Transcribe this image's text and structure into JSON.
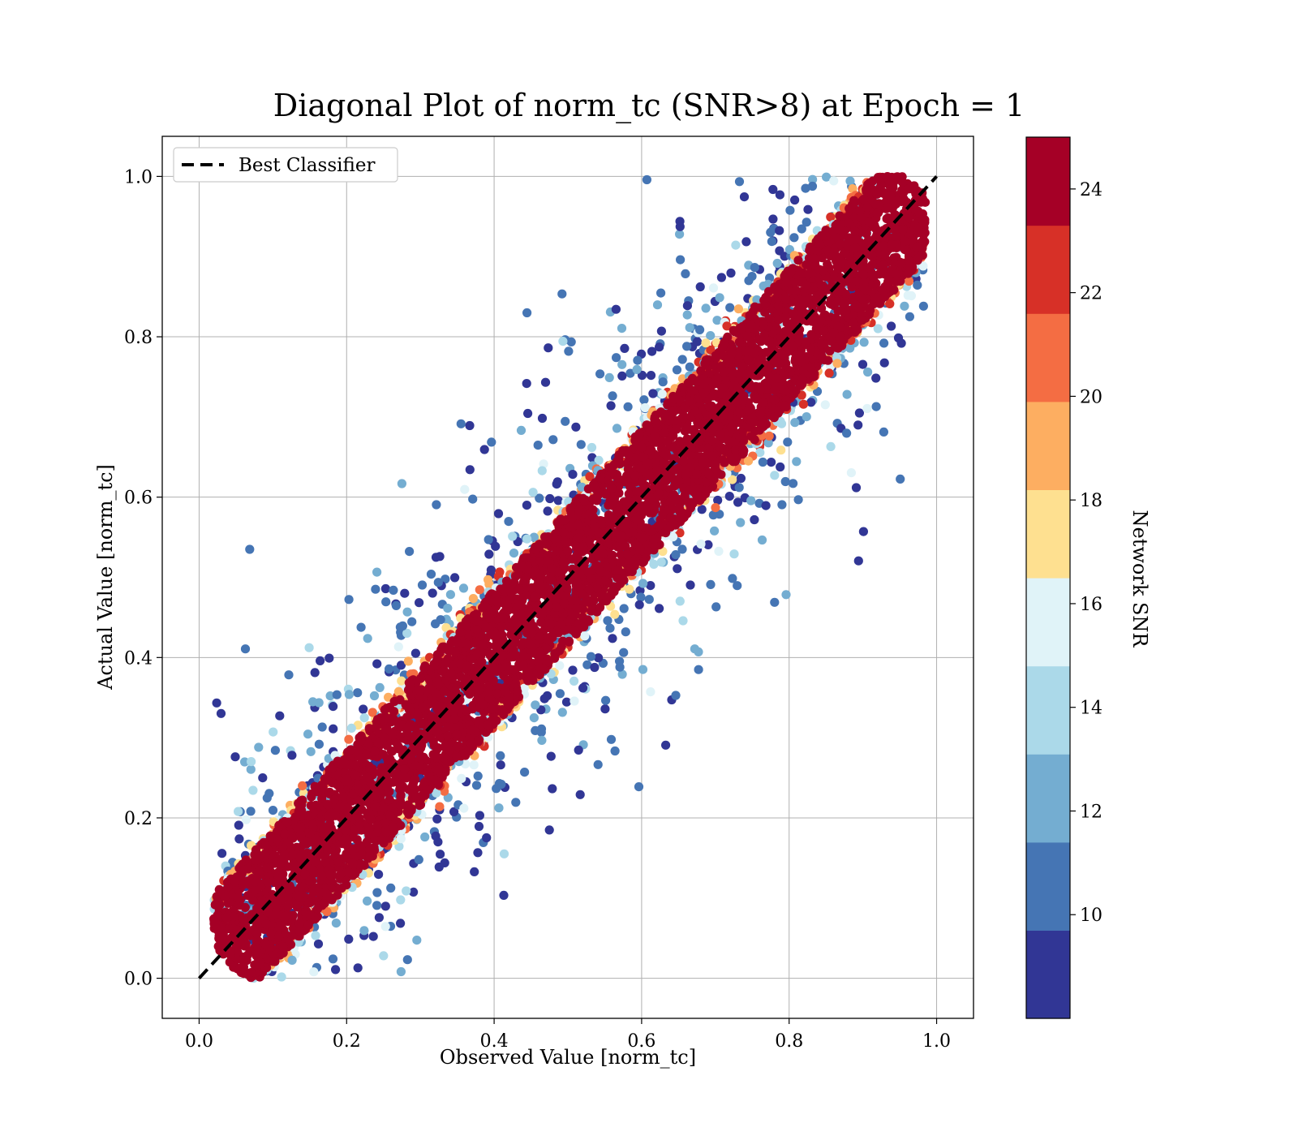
{
  "chart_data": {
    "type": "scatter",
    "title": "Diagonal Plot of norm_tc (SNR>8) at Epoch = 1",
    "xlabel": "Observed Value [norm_tc]",
    "ylabel": "Actual Value [norm_tc]",
    "xlim": [
      -0.05,
      1.05
    ],
    "ylim": [
      -0.05,
      1.05
    ],
    "xticks": [
      "0.0",
      "0.2",
      "0.4",
      "0.6",
      "0.8",
      "1.0"
    ],
    "yticks": [
      "0.0",
      "0.2",
      "0.4",
      "0.6",
      "0.8",
      "1.0"
    ],
    "grid": true,
    "legend": {
      "placement": "upper-left",
      "entries": [
        "Best Classifier"
      ]
    },
    "reference_line": {
      "name": "Best Classifier",
      "style": "dashed",
      "color": "#000000",
      "from": [
        0,
        0
      ],
      "to": [
        1,
        1
      ]
    },
    "colorbar": {
      "label": "Network SNR",
      "range": [
        8,
        25
      ],
      "ticks": [
        "10",
        "12",
        "14",
        "16",
        "18",
        "20",
        "22",
        "24"
      ],
      "colors": [
        "#313695",
        "#4575b4",
        "#74add1",
        "#abd9e9",
        "#e0f3f8",
        "#fee090",
        "#fdae61",
        "#f46d43",
        "#d73027",
        "#a50026"
      ]
    },
    "point_distribution": {
      "dense_band_snr": 25,
      "dense_band_halfwidth": 0.06,
      "outlier_snr_range": [
        8,
        16
      ]
    }
  }
}
